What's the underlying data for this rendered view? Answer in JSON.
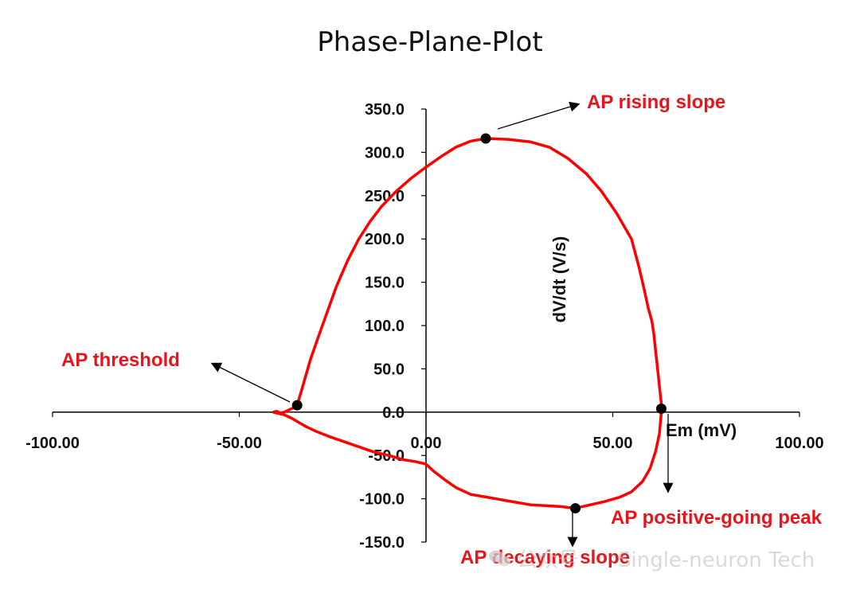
{
  "chart_data": {
    "type": "line",
    "title": "Phase-Plane-Plot",
    "xlabel": "Em (mV)",
    "ylabel": "dV/dt (V/s)",
    "xlim": [
      -100,
      100
    ],
    "ylim": [
      -150,
      350
    ],
    "x_ticks": [
      "-100.00",
      "-50.00",
      "0.00",
      "50.00",
      "100.00"
    ],
    "y_ticks": [
      "350.0",
      "300.0",
      "250.0",
      "200.0",
      "150.0",
      "100.0",
      "50.0",
      "0.0",
      "-50.0",
      "-100.0",
      "-150.0"
    ],
    "grid": false,
    "line_color": "#ff0000",
    "series": [
      {
        "name": "",
        "points": [
          [
            -41.0,
            0
          ],
          [
            -40.0,
            1
          ],
          [
            -39.0,
            -1
          ],
          [
            -38.0,
            0
          ],
          [
            -37.0,
            2
          ],
          [
            -36.0,
            4
          ],
          [
            -35.0,
            6
          ],
          [
            -34.5,
            8
          ],
          [
            -33.0,
            30
          ],
          [
            -31.0,
            60
          ],
          [
            -29.0,
            85
          ],
          [
            -26.5,
            115
          ],
          [
            -24.0,
            145
          ],
          [
            -21.0,
            175
          ],
          [
            -18.0,
            200
          ],
          [
            -15.0,
            220
          ],
          [
            -12.0,
            237
          ],
          [
            -8.0,
            255
          ],
          [
            -4.0,
            270
          ],
          [
            0.0,
            283
          ],
          [
            4.0,
            295
          ],
          [
            8.0,
            306
          ],
          [
            12.0,
            313
          ],
          [
            16.0,
            316
          ],
          [
            22.0,
            315
          ],
          [
            28.0,
            312
          ],
          [
            33.0,
            306
          ],
          [
            38.0,
            293
          ],
          [
            43.0,
            275
          ],
          [
            47.0,
            255
          ],
          [
            51.0,
            230
          ],
          [
            55.0,
            200
          ],
          [
            57.0,
            168
          ],
          [
            58.5,
            140
          ],
          [
            59.5,
            120
          ],
          [
            60.5,
            105
          ],
          [
            61.0,
            90
          ],
          [
            61.5,
            70
          ],
          [
            62.0,
            50
          ],
          [
            62.5,
            30
          ],
          [
            63.0,
            10
          ],
          [
            63.0,
            0
          ],
          [
            62.5,
            -25
          ],
          [
            61.5,
            -45
          ],
          [
            60.0,
            -65
          ],
          [
            58.0,
            -80
          ],
          [
            55.0,
            -92
          ],
          [
            52.0,
            -98
          ],
          [
            48.0,
            -103
          ],
          [
            44.0,
            -107
          ],
          [
            40.0,
            -111
          ],
          [
            36.0,
            -109
          ],
          [
            32.0,
            -108
          ],
          [
            28.0,
            -107
          ],
          [
            24.0,
            -104
          ],
          [
            20.0,
            -101
          ],
          [
            16.0,
            -98
          ],
          [
            12.0,
            -95
          ],
          [
            8.0,
            -87
          ],
          [
            5.0,
            -78
          ],
          [
            2.0,
            -68
          ],
          [
            0.0,
            -60
          ],
          [
            -3.0,
            -57
          ],
          [
            -6.0,
            -55
          ],
          [
            -10.0,
            -50
          ],
          [
            -14.0,
            -46
          ],
          [
            -18.0,
            -40
          ],
          [
            -22.0,
            -34
          ],
          [
            -26.0,
            -28
          ],
          [
            -29.0,
            -23
          ],
          [
            -32.0,
            -17
          ],
          [
            -34.0,
            -12
          ],
          [
            -36.0,
            -7
          ],
          [
            -38.0,
            -3
          ],
          [
            -40.0,
            -1
          ],
          [
            -41.0,
            0
          ]
        ]
      }
    ],
    "markers": [
      {
        "x": -34.5,
        "y": 8
      },
      {
        "x": 16.0,
        "y": 316
      },
      {
        "x": 63.0,
        "y": 4
      },
      {
        "x": 40.0,
        "y": -111
      }
    ],
    "annotations": [
      {
        "text": "AP rising slope",
        "color": "#e8131b"
      },
      {
        "text": "AP threshold",
        "color": "#e8131b"
      },
      {
        "text": "AP positive-going peak",
        "color": "#e8131b"
      },
      {
        "text": "AP decaying slope",
        "color": "#e8131b"
      }
    ]
  },
  "watermark": {
    "text": "Single-neuron Tech",
    "icon": "wechat-icon",
    "prefix": "公众号"
  }
}
